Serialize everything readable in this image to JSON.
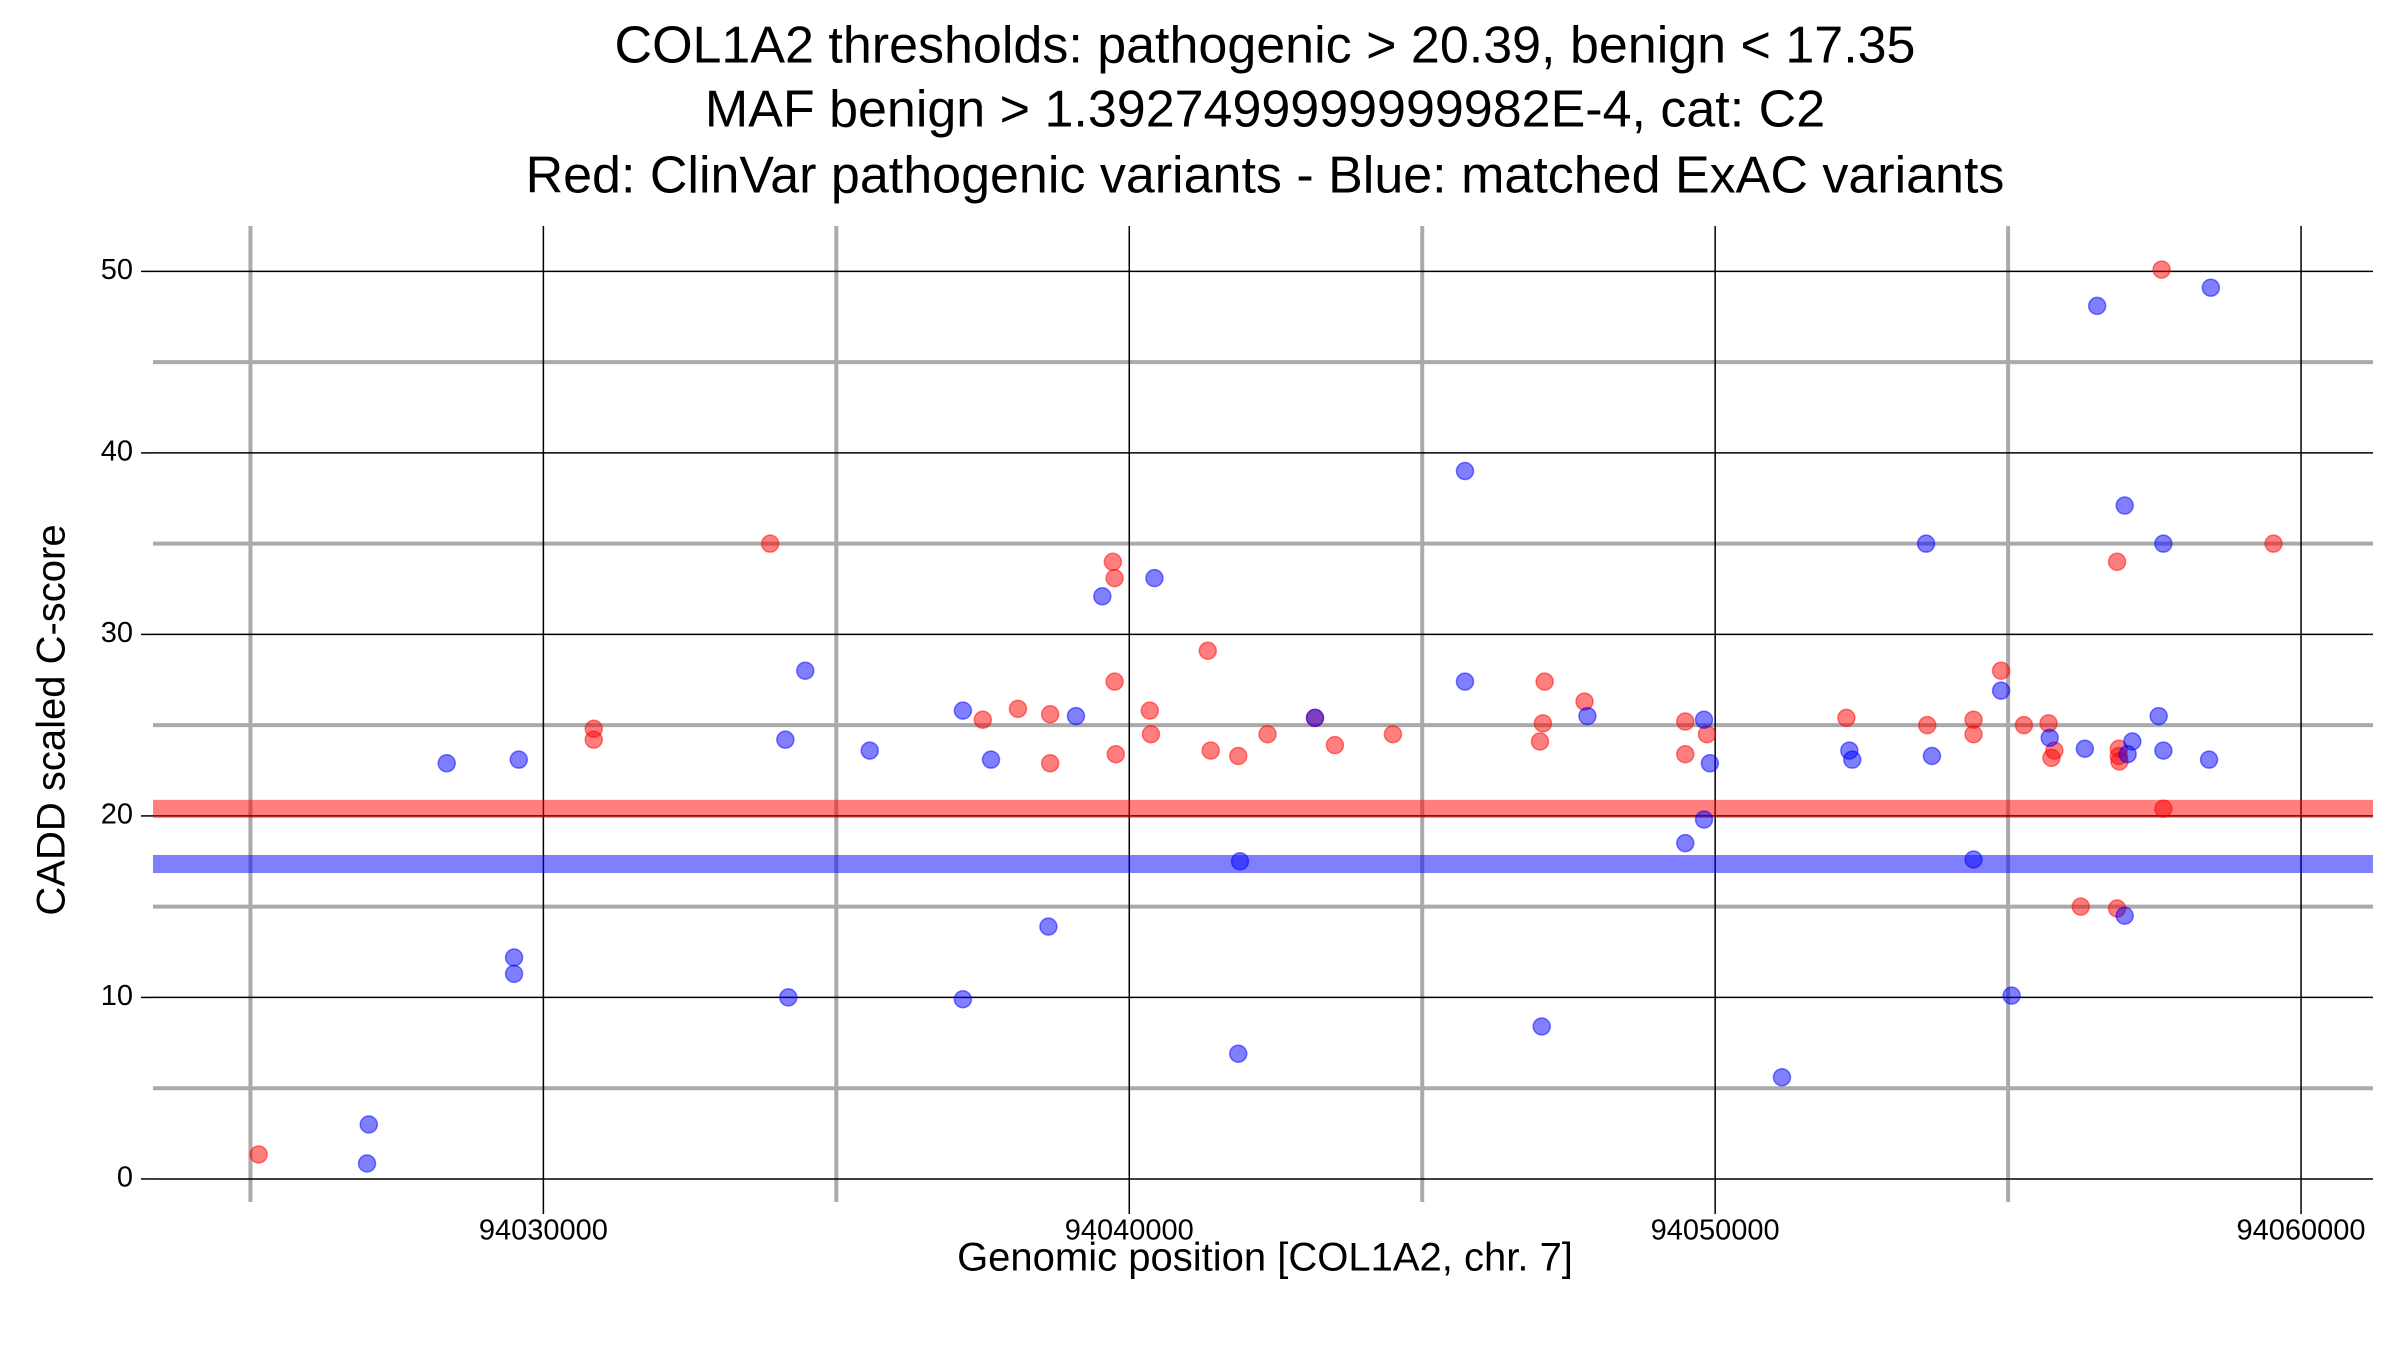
{
  "chart_data": {
    "type": "scatter",
    "title": [
      "COL1A2 thresholds: pathogenic > 20.39, benign < 17.35",
      "MAF benign > 1.3927499999999982E-4, cat: C2",
      "Red: ClinVar pathogenic variants - Blue: matched ExAC variants"
    ],
    "x_label": "Genomic position [COL1A2, chr. 7]",
    "y_label": "CADD scaled C-score",
    "xlim": [
      94023337,
      94061228
    ],
    "ylim": [
      -1.27,
      52.5
    ],
    "xticks": [
      94030000,
      94040000,
      94050000,
      94060000
    ],
    "yticks": [
      0,
      10,
      20,
      30,
      40,
      50
    ],
    "xminorticks": [
      94025000,
      94035000,
      94045000,
      94055000
    ],
    "yminorticks": [
      5,
      15,
      25,
      35,
      45
    ],
    "grid": true,
    "hlines": [
      {
        "value": 20.39,
        "color": "#ff0000"
      },
      {
        "value": 17.35,
        "color": "#0000ff"
      }
    ],
    "series": [
      {
        "color": "#ff0000",
        "x": [
          94025140,
          94030860,
          94030860,
          94033870,
          94037500,
          94038100,
          94038650,
          94038650,
          94039720,
          94039750,
          94039750,
          94039770,
          94040350,
          94040370,
          94041340,
          94041390,
          94041860,
          94042360,
          94043170,
          94043510,
          94044500,
          94047090,
          94047060,
          94047010,
          94047770,
          94049490,
          94049490,
          94049860,
          94052240,
          94053620,
          94054410,
          94054410,
          94054880,
          94055270,
          94055690,
          94055740,
          94055790,
          94056240,
          94056860,
          94056860,
          94056890,
          94056890,
          94056900,
          94057620,
          94057650,
          94059530
        ],
        "values": [
          1.35,
          24.8,
          24.2,
          35.0,
          25.3,
          25.9,
          25.6,
          22.9,
          34.0,
          33.1,
          27.4,
          23.4,
          25.8,
          24.5,
          29.1,
          23.6,
          23.3,
          24.5,
          25.4,
          23.9,
          24.5,
          27.4,
          25.1,
          24.1,
          26.3,
          25.2,
          23.4,
          24.5,
          25.4,
          25.0,
          25.3,
          24.5,
          28.0,
          25.0,
          25.1,
          23.2,
          23.6,
          15.0,
          34.0,
          14.9,
          23.7,
          23.3,
          23.0,
          50.1,
          20.4,
          35.0
        ]
      },
      {
        "color": "#0000ff",
        "x": [
          94028350,
          94027020,
          94026990,
          94029500,
          94029500,
          94029580,
          94034130,
          94034470,
          94034180,
          94035570,
          94037160,
          94037160,
          94037640,
          94038620,
          94039090,
          94039540,
          94040430,
          94041890,
          94041860,
          94043170,
          94045730,
          94045730,
          94047040,
          94047820,
          94049490,
          94049810,
          94049810,
          94049910,
          94051140,
          94052290,
          94052340,
          94053600,
          94053700,
          94054410,
          94054880,
          94055060,
          94055710,
          94056310,
          94056520,
          94056990,
          94056990,
          94057120,
          94057040,
          94057570,
          94057650,
          94057650,
          94058430,
          94058460
        ],
        "values": [
          22.9,
          3.0,
          0.85,
          12.2,
          11.3,
          23.1,
          24.2,
          28.0,
          10.0,
          23.6,
          25.8,
          9.9,
          23.1,
          13.9,
          25.5,
          32.1,
          33.1,
          17.5,
          6.9,
          25.4,
          39.0,
          27.4,
          8.4,
          25.5,
          18.5,
          25.3,
          19.8,
          22.9,
          5.6,
          23.6,
          23.1,
          35.0,
          23.3,
          17.6,
          26.9,
          10.1,
          24.3,
          23.7,
          48.1,
          37.1,
          14.5,
          24.1,
          23.4,
          25.5,
          35.0,
          23.6,
          23.1,
          49.1
        ]
      }
    ]
  }
}
